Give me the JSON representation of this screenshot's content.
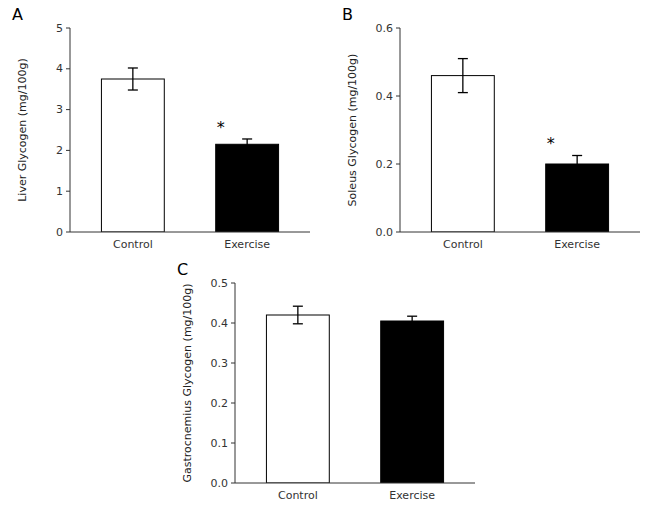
{
  "chart_data": [
    {
      "type": "bar",
      "title": "A",
      "categories": [
        "Control",
        "Exercise"
      ],
      "values": [
        3.75,
        2.15
      ],
      "errors": [
        0.27,
        0.13
      ],
      "colors": [
        "white",
        "black"
      ],
      "y_label": "Liver Glycogen (mg/100g)",
      "ylim": [
        0,
        5
      ],
      "yticks": [
        0,
        1,
        2,
        3,
        4,
        5
      ],
      "annotations": [
        {
          "text": "*",
          "category": "Exercise"
        }
      ]
    },
    {
      "type": "bar",
      "title": "B",
      "categories": [
        "Control",
        "Exercise"
      ],
      "values": [
        0.46,
        0.2
      ],
      "errors": [
        0.05,
        0.025
      ],
      "colors": [
        "white",
        "black"
      ],
      "y_label": "Soleus Glycogen (mg/100g)",
      "ylim": [
        0,
        0.6
      ],
      "yticks": [
        {
          "value": 0,
          "label": "0.0"
        },
        0.2,
        0.4,
        0.6
      ],
      "annotations": [
        {
          "text": "*",
          "category": "Exercise"
        }
      ]
    },
    {
      "type": "bar",
      "title": "C",
      "categories": [
        "Control",
        "Exercise"
      ],
      "values": [
        0.42,
        0.405
      ],
      "errors": [
        0.022,
        0.012
      ],
      "colors": [
        "white",
        "black"
      ],
      "y_label": "Gastrocnemius Glycogen (mg/100g)",
      "ylim": [
        0,
        0.5
      ],
      "yticks": [
        {
          "value": 0,
          "label": "0.0"
        },
        0.1,
        0.2,
        0.3,
        0.4,
        0.5
      ]
    }
  ]
}
